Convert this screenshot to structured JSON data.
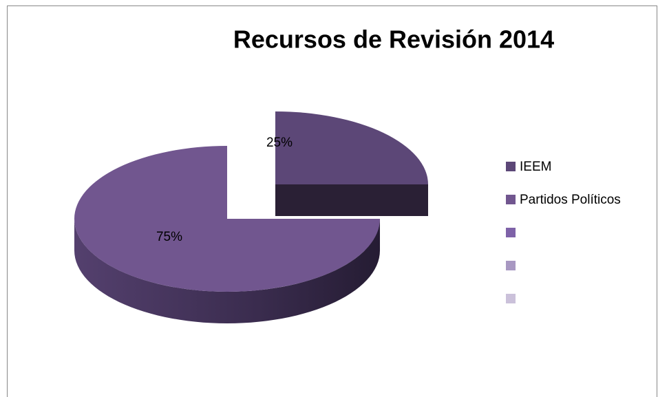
{
  "chart_data": {
    "type": "pie",
    "title": "Recursos de Revisión 2014",
    "categories": [
      "IEEM",
      "Partidos Políticos",
      null,
      null,
      null
    ],
    "values": [
      25,
      75,
      0,
      0,
      0
    ],
    "value_labels": [
      "25%",
      "75%",
      null,
      null,
      null
    ],
    "colors": [
      "#5c4777",
      "#71568f",
      "#7e62a8",
      "#a898c2",
      "#cbc1da"
    ],
    "legend": "right"
  }
}
